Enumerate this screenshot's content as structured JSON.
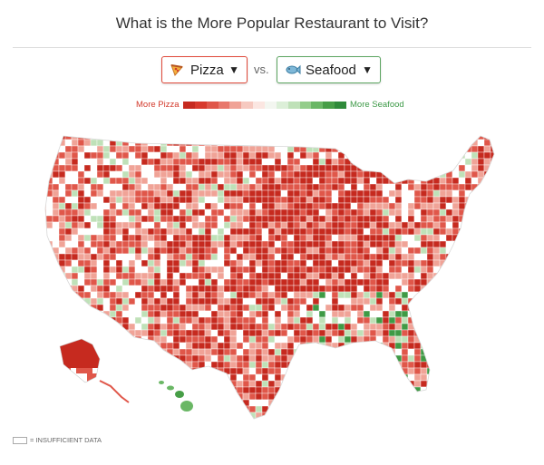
{
  "header": {
    "title": "What is the More Popular Restaurant to Visit?"
  },
  "selectors": {
    "left": {
      "label": "Pizza",
      "icon": "pizza-slice-icon",
      "color": "#e0493a"
    },
    "vs": "vs.",
    "right": {
      "label": "Seafood",
      "icon": "fish-icon",
      "color": "#5ca561"
    }
  },
  "legend": {
    "left_label": "More Pizza",
    "right_label": "More Seafood",
    "scale": [
      "#c62a1f",
      "#d8392c",
      "#e0574a",
      "#e8786c",
      "#f0a397",
      "#f6c9c0",
      "#fbe6e1",
      "#f3f6f0",
      "#dcefd8",
      "#bfe1b8",
      "#94cd8b",
      "#6ab765",
      "#479e47",
      "#2f8a3a"
    ]
  },
  "map": {
    "region": "United States counties",
    "colors": {
      "strong_pizza": "#c62a1f",
      "mid_pizza": "#e0574a",
      "light_pizza": "#f0a397",
      "neutral": "#ffffff",
      "light_seafood": "#bfe1b8",
      "strong_seafood": "#3f9a45"
    }
  },
  "footnote": {
    "label": "= INSUFFICIENT DATA"
  }
}
